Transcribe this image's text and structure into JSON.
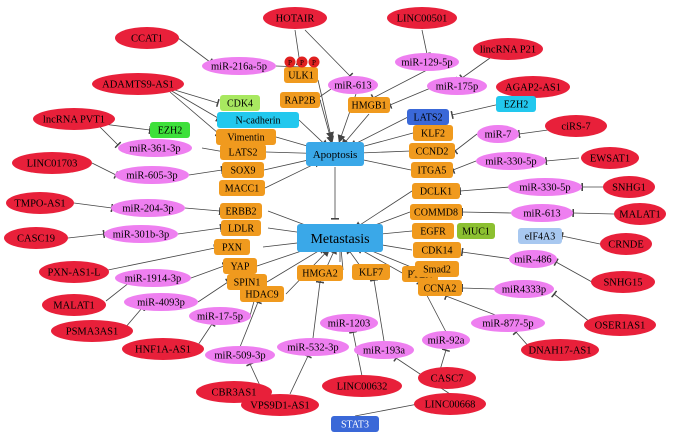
{
  "hubs": {
    "metastasis": "Metastasis",
    "apoptosis": "Apoptosis"
  },
  "lncrnas": [
    "CCAT1",
    "HOTAIR",
    "LINC00501",
    "lincRNA P21",
    "ADAMTS9-AS1",
    "AGAP2-AS1",
    "lncRNA PVT1",
    "ciRS-7",
    "LINC01703",
    "EWSAT1",
    "TMPO-AS1",
    "SNHG1",
    "CASC19",
    "MALAT1",
    "PXN-AS1-L",
    "CRNDE",
    "MALAT1",
    "SNHG15",
    "PSMA3AS1",
    "OSER1AS1",
    "HNF1A-AS1",
    "DNAH17-AS1",
    "CBR3AS1",
    "VPS9D1-AS1",
    "LINC00632",
    "CASC7",
    "LINC00668"
  ],
  "mirnas": [
    "miR-216a-5p",
    "miR-613",
    "miR-129-5p",
    "miR-175p",
    "miR-361-3p",
    "miR-7",
    "miR-605-3p",
    "miR-330-5p",
    "miR-204-3p",
    "miR-330-5p",
    "miR-301b-3p",
    "miR-613",
    "miR-486",
    "miR-1914-3p",
    "miR4333p",
    "miR-4093p",
    "miR-17-5p",
    "miR-877-5p",
    "miR-509-3p",
    "miR-532-3p",
    "miR-1203",
    "miR-92a",
    "miR-193a"
  ],
  "genes": [
    "ULK1",
    "RAP2B",
    "HMGB1",
    "CDK4",
    "N-cadherin",
    "Vimentin",
    "LATS2",
    "SOX9",
    "MACC1",
    "ERBB2",
    "LDLR",
    "PXN",
    "YAP",
    "SPIN1",
    "HMGA2",
    "HDAC9",
    "KLF7",
    "PTEN",
    "CCNA2",
    "Smad2",
    "CDK14",
    "EGFR",
    "COMMD8",
    "DCLK1",
    "ITGA5",
    "CCND2",
    "KLF2",
    "LATS2"
  ],
  "other_proteins": [
    "EZH2",
    "EZH2",
    "MUC1",
    "eIF4A3",
    "STAT3"
  ],
  "phospho_label": "P",
  "colors": {
    "lncrna_fill": "#e8203a",
    "mirna_fill": "#ee7ff0",
    "gene_fill": "#f09a1e",
    "hub_fill": "#3aa8e8",
    "cyan_fill": "#22c8ee",
    "green_fill": "#3ee03a",
    "lightgreen_fill": "#a8e860",
    "blue_fill": "#3a68d8",
    "lavender_fill": "#a8c8f0",
    "olive_fill": "#8cc030",
    "edge": "#444444",
    "p_fill": "#e02020"
  }
}
